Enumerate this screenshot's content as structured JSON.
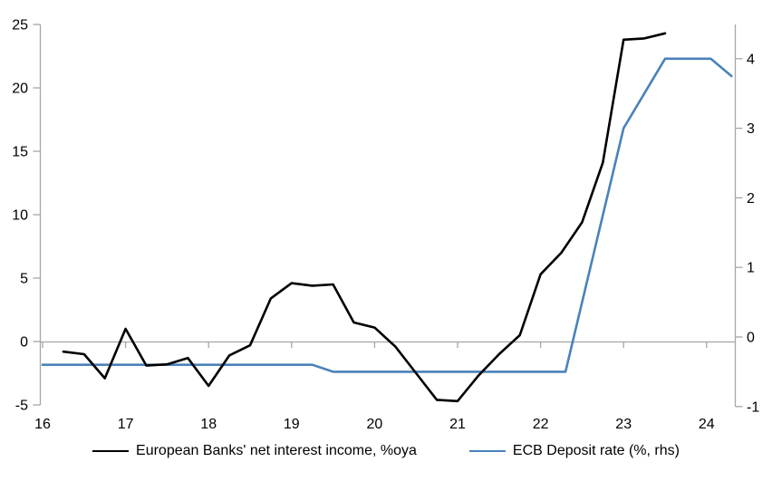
{
  "chart_data": {
    "type": "line",
    "title": "",
    "grid": "off",
    "legend_position": "bottom",
    "x_axis": {
      "ticks": [
        "16",
        "17",
        "18",
        "19",
        "20",
        "21",
        "22",
        "23",
        "24"
      ],
      "tick_values": [
        16,
        17,
        18,
        19,
        20,
        21,
        22,
        23,
        24
      ],
      "range": [
        15.95,
        24.35
      ]
    },
    "left_axis": {
      "ticks": [
        "25",
        "20",
        "15",
        "10",
        "5",
        "0",
        "-5"
      ],
      "tick_values": [
        25,
        20,
        15,
        10,
        5,
        0,
        -5
      ],
      "range": [
        -5,
        25
      ]
    },
    "right_axis": {
      "ticks": [
        "4",
        "3",
        "2",
        "1",
        "0",
        "-1"
      ],
      "tick_values": [
        4,
        3,
        2,
        1,
        0,
        -1
      ],
      "range": [
        -1,
        4.5
      ]
    },
    "series": [
      {
        "name": "European Banks' net interest income, %oya",
        "axis": "left",
        "color": "#000000",
        "x": [
          16.25,
          16.5,
          16.75,
          17.0,
          17.25,
          17.5,
          17.75,
          18.0,
          18.25,
          18.5,
          18.75,
          19.0,
          19.25,
          19.5,
          19.75,
          20.0,
          20.25,
          20.5,
          20.75,
          21.0,
          21.25,
          21.5,
          21.75,
          22.0,
          22.25,
          22.5,
          22.75,
          23.0,
          23.25,
          23.5
        ],
        "y": [
          -0.8,
          -1.0,
          -2.9,
          1.0,
          -1.9,
          -1.8,
          -1.3,
          -3.5,
          -1.1,
          -0.3,
          3.4,
          4.6,
          4.4,
          4.5,
          1.5,
          1.1,
          -0.4,
          -2.5,
          -4.6,
          -4.7,
          -2.7,
          -1.0,
          0.5,
          5.3,
          7.0,
          9.4,
          14.1,
          23.8,
          23.9,
          24.3
        ]
      },
      {
        "name": "ECB Deposit rate (%, rhs)",
        "axis": "right",
        "color": "#4a82ba",
        "x": [
          16.0,
          19.25,
          19.5,
          22.3,
          23.0,
          23.5,
          24.05,
          24.3
        ],
        "y": [
          -0.4,
          -0.4,
          -0.5,
          -0.5,
          3.0,
          4.0,
          4.0,
          3.75
        ]
      }
    ],
    "colors": {
      "axis": "#a6a6a6",
      "text": "#000000"
    }
  }
}
